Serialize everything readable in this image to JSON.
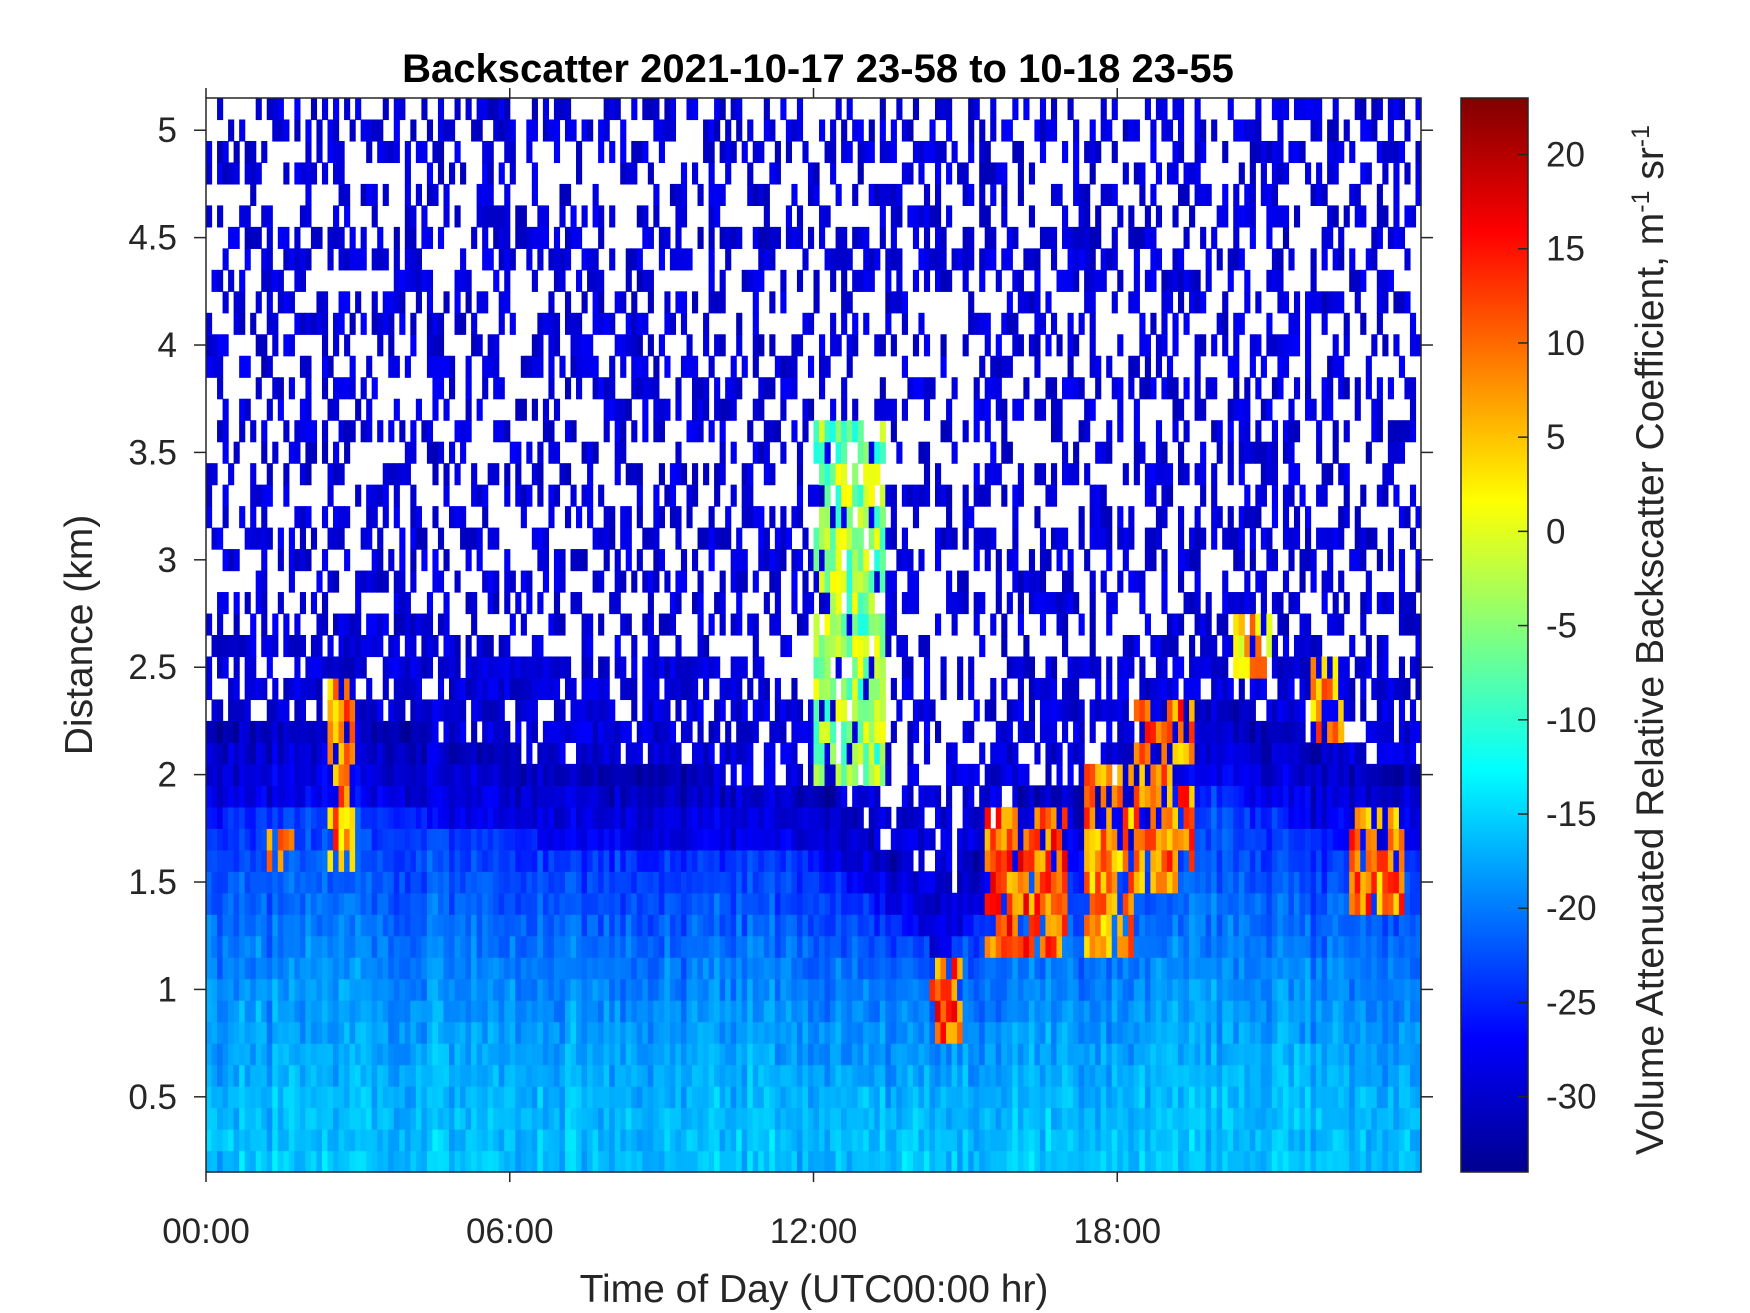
{
  "chart_data": {
    "type": "heatmap",
    "title": "Backscatter 2021-10-17 23-58 to 10-18 23-55",
    "xlabel": "Time of Day (UTC00:00 hr)",
    "ylabel": "Distance (km)",
    "colorbar_label": "Volume Attenuated Relative Backscatter Coefficient, m",
    "colorbar_unit_sup1": "-1",
    "colorbar_unit_mid": " sr",
    "colorbar_unit_sup2": "-1",
    "colormap": "jet",
    "x_range_hours": [
      0,
      24
    ],
    "y_range_km": [
      0.15,
      5.15
    ],
    "clim": [
      -34,
      23
    ],
    "x_ticks": [
      {
        "value": 0,
        "label": "00:00"
      },
      {
        "value": 6,
        "label": "06:00"
      },
      {
        "value": 12,
        "label": "12:00"
      },
      {
        "value": 18,
        "label": "18:00"
      }
    ],
    "y_ticks": [
      {
        "value": 0.5,
        "label": "0.5"
      },
      {
        "value": 1,
        "label": "1"
      },
      {
        "value": 1.5,
        "label": "1.5"
      },
      {
        "value": 2,
        "label": "2"
      },
      {
        "value": 2.5,
        "label": "2.5"
      },
      {
        "value": 3,
        "label": "3"
      },
      {
        "value": 3.5,
        "label": "3.5"
      },
      {
        "value": 4,
        "label": "4"
      },
      {
        "value": 4.5,
        "label": "4.5"
      },
      {
        "value": 5,
        "label": "5"
      }
    ],
    "colorbar_ticks": [
      {
        "value": 20,
        "label": "20"
      },
      {
        "value": 15,
        "label": "15"
      },
      {
        "value": 10,
        "label": "10"
      },
      {
        "value": 5,
        "label": "5"
      },
      {
        "value": 0,
        "label": "0"
      },
      {
        "value": -5,
        "label": "-5"
      },
      {
        "value": -10,
        "label": "-10"
      },
      {
        "value": -15,
        "label": "-15"
      },
      {
        "value": -20,
        "label": "-20"
      },
      {
        "value": -25,
        "label": "-25"
      },
      {
        "value": -30,
        "label": "-30"
      }
    ],
    "grid": false,
    "approx_features": {
      "boundary_layer_top_km": [
        [
          0,
          2.2
        ],
        [
          3,
          2.3
        ],
        [
          6,
          2.1
        ],
        [
          10,
          2.0
        ],
        [
          12,
          2.0
        ],
        [
          14.5,
          1.4
        ],
        [
          16,
          1.9
        ],
        [
          18,
          2.0
        ],
        [
          20,
          2.4
        ],
        [
          22,
          2.1
        ],
        [
          24,
          2.0
        ]
      ],
      "cloud_patches": [
        {
          "time_hr": [
            1.2,
            1.7
          ],
          "height_km": [
            1.55,
            1.75
          ],
          "peak": 15
        },
        {
          "time_hr": [
            2.4,
            2.9
          ],
          "height_km": [
            1.6,
            2.45
          ],
          "peak": 15
        },
        {
          "time_hr": [
            12.0,
            13.4
          ],
          "height_km": [
            2.0,
            3.6
          ],
          "peak": 2
        },
        {
          "time_hr": [
            14.3,
            14.9
          ],
          "height_km": [
            0.75,
            1.15
          ],
          "peak": 18
        },
        {
          "time_hr": [
            15.4,
            17.0
          ],
          "height_km": [
            1.2,
            1.8
          ],
          "peak": 18
        },
        {
          "time_hr": [
            17.3,
            18.3
          ],
          "height_km": [
            1.2,
            2.0
          ],
          "peak": 15
        },
        {
          "time_hr": [
            18.3,
            19.5
          ],
          "height_km": [
            1.5,
            2.3
          ],
          "peak": 16
        },
        {
          "time_hr": [
            20.3,
            21.0
          ],
          "height_km": [
            2.5,
            2.8
          ],
          "peak": 12
        },
        {
          "time_hr": [
            21.8,
            22.5
          ],
          "height_km": [
            2.2,
            2.5
          ],
          "peak": 14
        },
        {
          "time_hr": [
            22.6,
            23.7
          ],
          "height_km": [
            1.4,
            1.8
          ],
          "peak": 16
        }
      ]
    }
  }
}
